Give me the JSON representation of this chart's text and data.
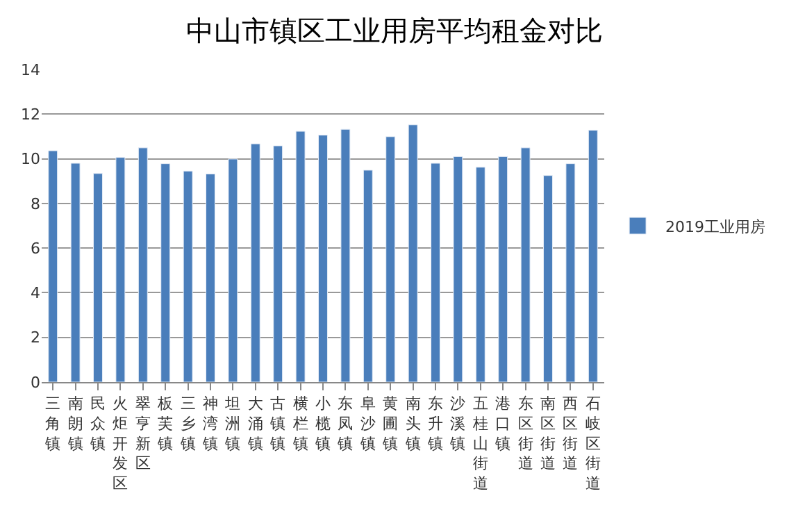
{
  "chart_data": {
    "type": "bar",
    "title": "中山市镇区工业用房平均租金对比",
    "categories": [
      "三角镇",
      "南朗镇",
      "民众镇",
      "火炬开发区",
      "翠亨新区",
      "板芙镇",
      "三乡镇",
      "神湾镇",
      "坦洲镇",
      "大涌镇",
      "古镇镇",
      "横栏镇",
      "小榄镇",
      "东凤镇",
      "阜沙镇",
      "黄圃镇",
      "南头镇",
      "东升镇",
      "沙溪镇",
      "五桂山街道",
      "港口镇",
      "东区街道",
      "南区街道",
      "西区街道",
      "石岐区街道"
    ],
    "series": [
      {
        "name": "2019工业用房",
        "color": "#4a7ebb",
        "values": [
          10.36,
          9.8,
          9.34,
          10.06,
          10.49,
          9.78,
          9.45,
          9.32,
          9.99,
          10.67,
          10.58,
          11.23,
          11.06,
          11.32,
          9.49,
          10.99,
          11.52,
          9.8,
          10.1,
          9.62,
          10.1,
          10.49,
          9.25,
          9.78,
          11.28
        ]
      }
    ],
    "ylim": [
      0,
      14
    ],
    "yticks": [
      0,
      2,
      4,
      6,
      8,
      10,
      12,
      14
    ],
    "grid": "y",
    "legend": "right"
  }
}
